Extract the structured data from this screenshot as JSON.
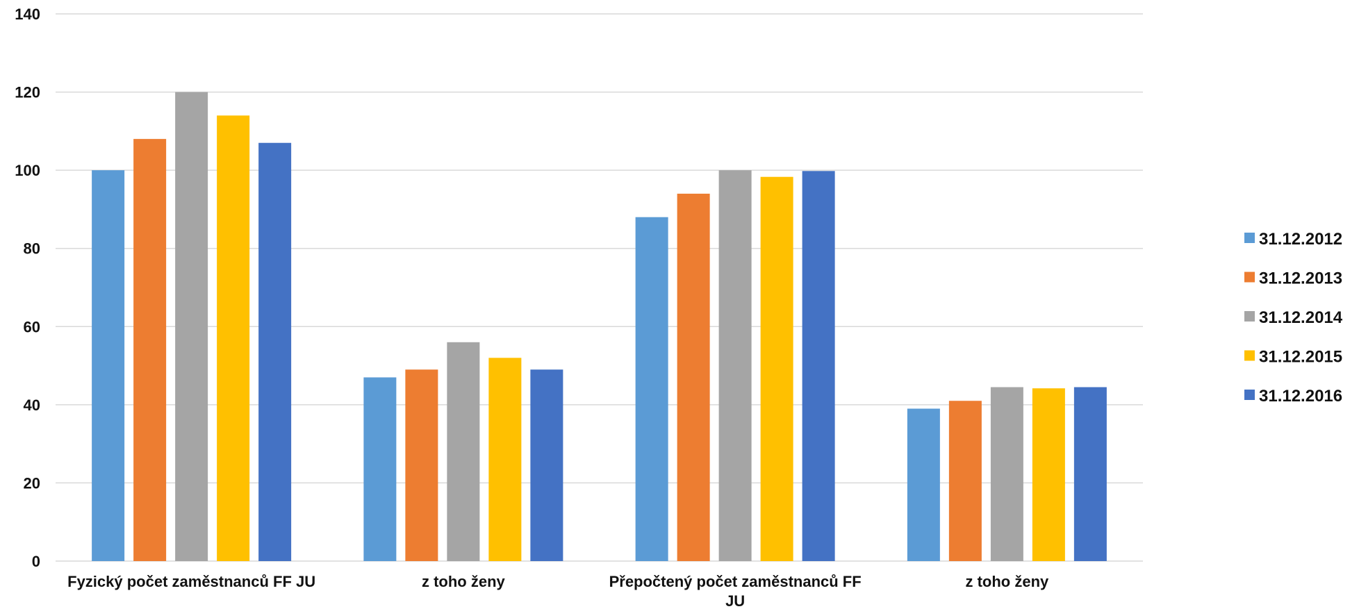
{
  "chart_data": {
    "type": "bar",
    "title": "",
    "xlabel": "",
    "ylabel": "",
    "ylim": [
      0,
      140
    ],
    "yticks": [
      0,
      20,
      40,
      60,
      80,
      100,
      120,
      140
    ],
    "grid": true,
    "legend_position": "right",
    "categories": [
      [
        "Fyzický počet zaměstnanců FF JU"
      ],
      [
        "z toho ženy"
      ],
      [
        "Přepočtený počet zaměstnanců FF",
        "JU"
      ],
      [
        "z toho ženy"
      ]
    ],
    "series": [
      {
        "name": "31.12.2012",
        "color": "#5b9bd5",
        "values": [
          100,
          47,
          88,
          39
        ]
      },
      {
        "name": "31.12.2013",
        "color": "#ed7d31",
        "values": [
          108,
          49,
          94,
          41
        ]
      },
      {
        "name": "31.12.2014",
        "color": "#a5a5a5",
        "values": [
          120,
          56,
          100,
          44.5
        ]
      },
      {
        "name": "31.12.2015",
        "color": "#ffc000",
        "values": [
          114,
          52,
          98.3,
          44.2
        ]
      },
      {
        "name": "31.12.2016",
        "color": "#4472c4",
        "values": [
          107,
          49,
          99.8,
          44.5
        ]
      }
    ]
  }
}
